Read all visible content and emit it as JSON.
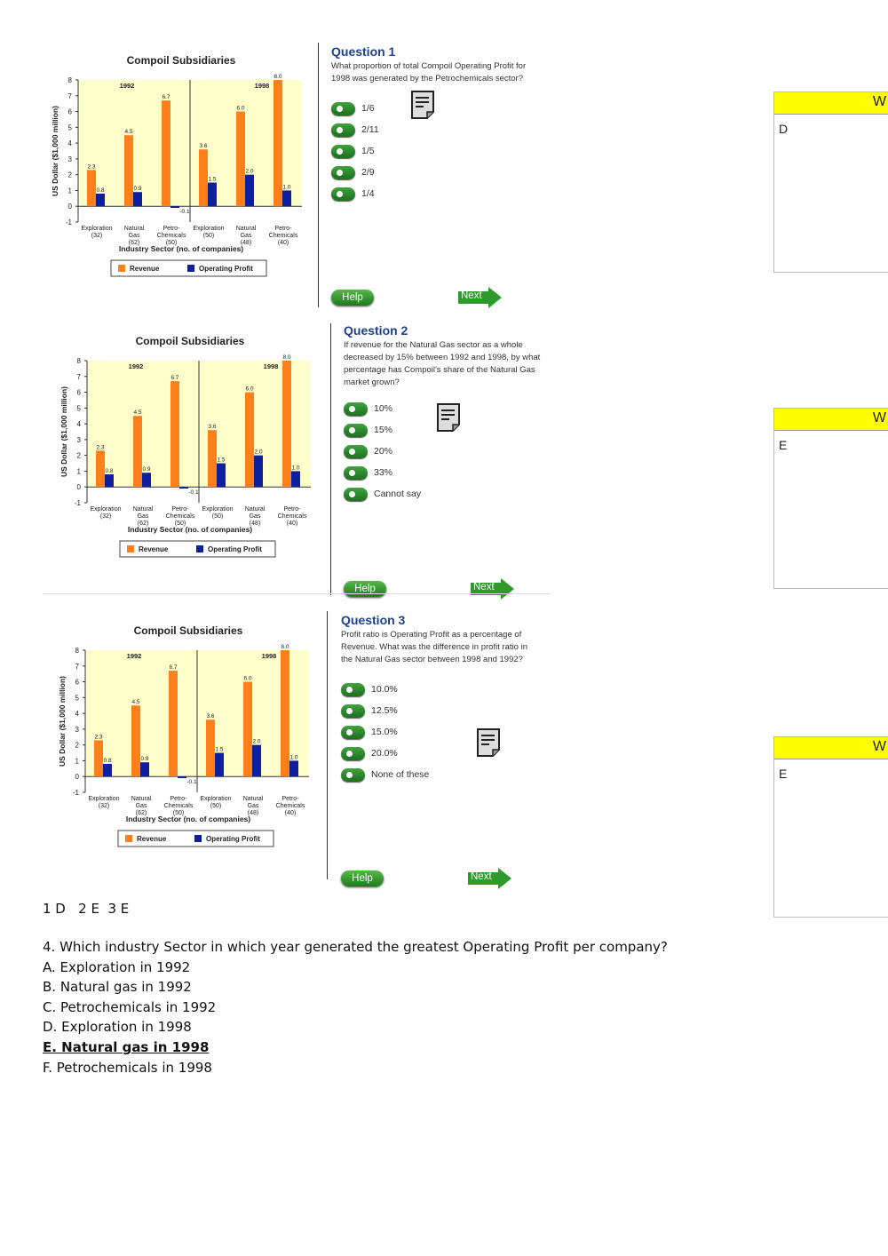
{
  "chart_data": [
    {
      "type": "bar",
      "title": "Compoil Subsidiaries",
      "ylabel": "US Dollar ($1,000 million)",
      "xlabel": "Industry Sector (no. of companies)",
      "ylim": [
        -1,
        8
      ],
      "y_ticks": [
        "-1",
        "0",
        "1",
        "2",
        "3",
        "4",
        "5",
        "6",
        "7",
        "8"
      ],
      "panels": [
        {
          "label": "1992",
          "categories": [
            [
              "Exploration",
              "(32)"
            ],
            [
              "Natural",
              "Gas",
              "(62)"
            ],
            [
              "Petro-",
              "Chemicals",
              "(50)"
            ]
          ]
        },
        {
          "label": "1998",
          "categories": [
            [
              "Exploration",
              "(50)"
            ],
            [
              "Natural",
              "Gas",
              "(48)"
            ],
            [
              "Petro-",
              "Chemicals",
              "(40)"
            ]
          ]
        }
      ],
      "series": [
        {
          "name": "Revenue",
          "color": "#ff7f1a",
          "values": [
            2.3,
            4.5,
            6.7,
            3.6,
            6.0,
            8.0
          ],
          "labels": [
            "2.3",
            "4.5",
            "6.7",
            "3.6",
            "6.0",
            "8.0"
          ]
        },
        {
          "name": "Operating Profit",
          "color": "#0d1f9c",
          "values": [
            0.8,
            0.9,
            -0.1,
            1.5,
            2.0,
            1.0
          ],
          "labels": [
            "0.8",
            "0.9",
            "-0.1",
            "1.5",
            "2.0",
            "1.0"
          ]
        }
      ],
      "legend": "bottom"
    }
  ],
  "questions": [
    {
      "title": "Question 1",
      "text": [
        "What proportion of total Compoil Operating Profit for",
        "1998 was generated by the Petrochemicals sector?"
      ],
      "options": [
        "1/6",
        "2/11",
        "1/5",
        "2/9",
        "1/4"
      ],
      "help": "Help",
      "next": "Next",
      "side_header": "W",
      "side_answer": "D"
    },
    {
      "title": "Question 2",
      "text": [
        "If revenue for the Natural Gas sector as a whole",
        "decreased by 15% between 1992 and 1998, by what",
        "percentage has Compoil's share of the Natural Gas",
        "market grown?"
      ],
      "options": [
        "10%",
        "15%",
        "20%",
        "33%",
        "Cannot say"
      ],
      "help": "Help",
      "next": "Next",
      "side_header": "W",
      "side_answer": "E"
    },
    {
      "title": "Question 3",
      "text": [
        "Profit ratio is Operating Profit as a percentage of",
        "Revenue. What was the difference in profit ratio in",
        "the Natural Gas sector between 1998 and 1992?"
      ],
      "options": [
        "10.0%",
        "12.5%",
        "15.0%",
        "20.0%",
        "None of these"
      ],
      "help": "Help",
      "next": "Next",
      "side_header": "W",
      "side_answer": "E"
    }
  ],
  "answers_line": "1 D   2 E  3 E",
  "question4": {
    "prompt": "4. Which industry Sector in which year generated the greatest Operating Profit per company?",
    "options": [
      "A. Exploration in 1992",
      "B. Natural gas in 1992",
      "C. Petrochemicals in 1992",
      "D. Exploration in 1998",
      "E. Natural gas in 1998",
      "F. Petrochemicals in 1998"
    ],
    "correct_index": 4
  }
}
